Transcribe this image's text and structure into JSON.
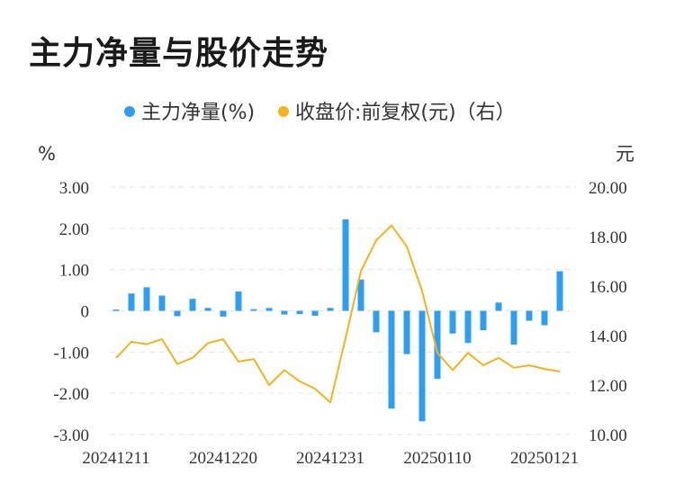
{
  "chart_data": {
    "type": "bar",
    "title": "主力净量与股价走势",
    "legend": {
      "placement": "top-center",
      "items": [
        {
          "label": "主力净量(%)",
          "color": "#2e9ff0"
        },
        {
          "label": "收盘价:前复权(元)（右）",
          "color": "#f5b31b"
        }
      ]
    },
    "y_left": {
      "unit": "%",
      "range": [
        -3,
        3
      ],
      "ticks": [
        "3.00",
        "2.00",
        "1.00",
        "0",
        "-1.00",
        "-2.00",
        "-3.00"
      ]
    },
    "y_right": {
      "unit": "元",
      "range": [
        10,
        20
      ],
      "ticks": [
        "20.00",
        "18.00",
        "16.00",
        "14.00",
        "12.00",
        "10.00"
      ]
    },
    "x_tick_labels": [
      "20241211",
      "20241220",
      "20241231",
      "20250110",
      "20250121"
    ],
    "grid": "horizontal-dashed",
    "series": [
      {
        "name": "主力净量(%)",
        "type": "bar",
        "axis": "left",
        "color": "#2e9ff0",
        "values": [
          0.03,
          0.42,
          0.57,
          0.37,
          -0.13,
          0.29,
          0.07,
          -0.14,
          0.47,
          0.04,
          0.07,
          -0.09,
          -0.08,
          -0.12,
          0.07,
          2.22,
          0.76,
          -0.52,
          -2.37,
          -1.05,
          -2.68,
          -1.65,
          -0.55,
          -0.78,
          -0.47,
          0.2,
          -0.82,
          -0.24,
          -0.35,
          0.96
        ]
      },
      {
        "name": "收盘价:前复权(元)（右）",
        "type": "line",
        "axis": "right",
        "color": "#f5b31b",
        "values": [
          13.1,
          13.75,
          13.65,
          13.85,
          12.85,
          13.1,
          13.7,
          13.85,
          12.95,
          13.05,
          12.0,
          12.6,
          12.15,
          11.85,
          11.3,
          13.9,
          16.6,
          17.85,
          18.45,
          17.6,
          15.8,
          13.3,
          12.6,
          13.3,
          12.8,
          13.1,
          12.7,
          12.8,
          12.65,
          12.55
        ]
      }
    ]
  }
}
